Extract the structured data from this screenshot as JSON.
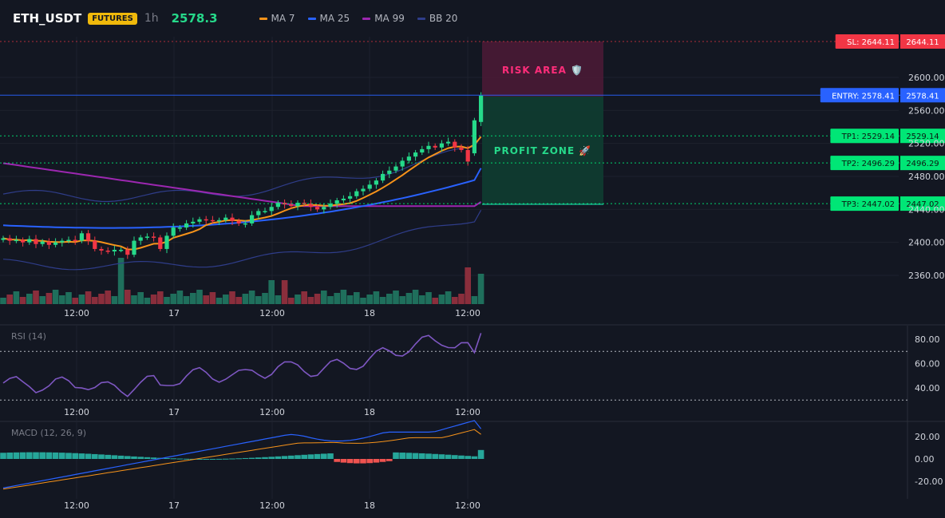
{
  "header": {
    "symbol": "ETH_USDT",
    "market_badge": "FUTURES",
    "timeframe": "1h",
    "last_price": "2578.3",
    "indicators": [
      {
        "label": "MA 7",
        "color": "#f7931a"
      },
      {
        "label": "MA 25",
        "color": "#2962ff"
      },
      {
        "label": "MA 99",
        "color": "#9c27b0"
      },
      {
        "label": "BB 20",
        "color": "#2f3d8a"
      }
    ]
  },
  "zones": {
    "risk_label": "RISK AREA 🛡️",
    "profit_label": "PROFIT ZONE 🚀"
  },
  "levels": {
    "sl": {
      "label": "SL: 2644.11",
      "price": 2644.11,
      "price_text": "2644.11",
      "color": "#f23645"
    },
    "entry": {
      "label": "ENTRY: 2578.41",
      "price": 2578.41,
      "price_text": "2578.41",
      "color": "#2962ff"
    },
    "tp1": {
      "label": "TP1: 2529.14",
      "price": 2529.14,
      "price_text": "2529.14",
      "color": "#00e676"
    },
    "tp2": {
      "label": "TP2: 2496.29",
      "price": 2496.29,
      "price_text": "2496.29",
      "color": "#00e676"
    },
    "tp3": {
      "label": "TP3: 2447.02",
      "price": 2447.02,
      "price_text": "2447.02",
      "color": "#00e676"
    }
  },
  "panes": {
    "rsi_title": "RSI (14)",
    "macd_title": "MACD (12, 26, 9)"
  },
  "chart_data": {
    "type": "candlestick",
    "interval": "1h",
    "price_axis_ticks": [
      "2600.00",
      "2560.00",
      "2520.00",
      "2480.00",
      "2440.00",
      "2400.00",
      "2360.00"
    ],
    "price_axis_values": [
      2600,
      2560,
      2520,
      2480,
      2440,
      2400,
      2360
    ],
    "time_axis_labels": [
      "12:00",
      "17",
      "12:00",
      "18",
      "12:00"
    ],
    "close": [
      2405,
      2402,
      2403,
      2400,
      2404,
      2398,
      2401,
      2397,
      2400,
      2402,
      2403,
      2402,
      2411,
      2402,
      2392,
      2390,
      2389,
      2391,
      2391,
      2385,
      2402,
      2406,
      2407,
      2406,
      2392,
      2408,
      2418,
      2418,
      2423,
      2425,
      2428,
      2427,
      2426,
      2427,
      2430,
      2426,
      2423,
      2423,
      2433,
      2438,
      2438,
      2443,
      2448,
      2446,
      2444,
      2448,
      2447,
      2443,
      2440,
      2443,
      2447,
      2451,
      2453,
      2456,
      2462,
      2465,
      2470,
      2475,
      2483,
      2487,
      2492,
      2499,
      2504,
      2509,
      2513,
      2517,
      2515,
      2520,
      2522,
      2515,
      2512,
      2498,
      2548,
      2578
    ],
    "ma7_end": 2528,
    "ma25_end": 2490,
    "ma99_end": 2449,
    "volume_peak_bar": 71,
    "rsi": {
      "ticks": [
        "80.00",
        "60.00",
        "40.00"
      ],
      "tick_values": [
        80,
        60,
        40
      ],
      "upper": 70,
      "lower": 30,
      "last": 85
    },
    "macd": {
      "ticks": [
        "20.00",
        "0.00",
        "-20.00"
      ],
      "tick_values": [
        20,
        0,
        -20
      ],
      "macd_last": 27,
      "signal_last": 22,
      "hist_last": 8
    }
  }
}
